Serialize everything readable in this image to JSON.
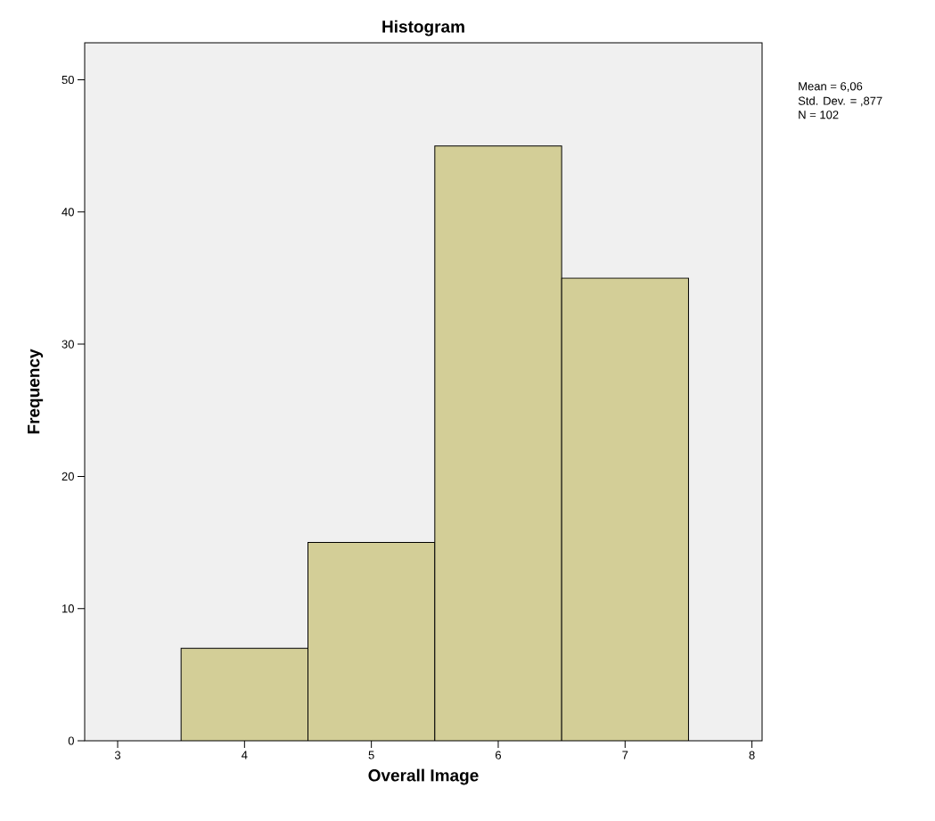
{
  "chart_data": {
    "type": "histogram",
    "title": "Histogram",
    "xlabel": "Overall Image",
    "ylabel": "Frequency",
    "bins": [
      3.5,
      4.5,
      5.5,
      6.5,
      7.5
    ],
    "values": [
      7,
      15,
      45,
      35
    ],
    "color": "#d3ce97",
    "xlim": [
      2.74,
      8.08
    ],
    "xticks": [
      3,
      4,
      5,
      6,
      7,
      8
    ],
    "ylim": [
      0,
      52.8
    ],
    "yticks": [
      0,
      10,
      20,
      30,
      40,
      50
    ],
    "grid": false,
    "annotations": [
      "Mean = 6,06",
      "Std. Dev. = ,877",
      "N = 102"
    ]
  }
}
